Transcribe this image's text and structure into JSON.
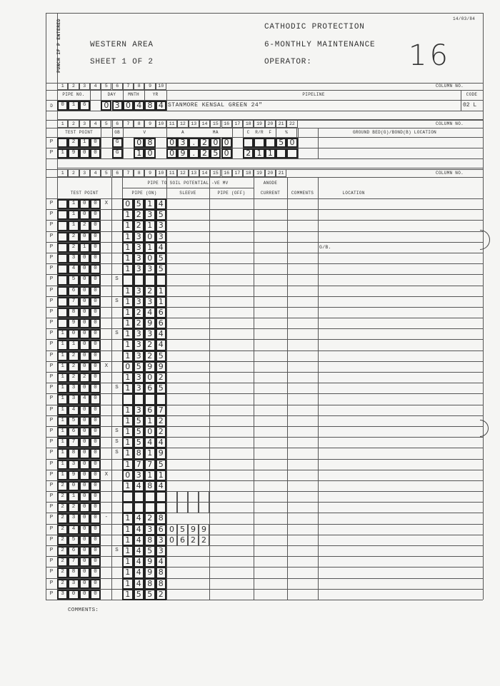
{
  "header": {
    "punch_label": "PUNCH IF P ENTERED",
    "org": "WESTERN AREA",
    "sheet": "SHEET 1 OF 2",
    "title": "CATHODIC PROTECTION",
    "subtitle": "6-MONTHLY MAINTENANCE",
    "operator_label": "OPERATOR:",
    "form_number": "16",
    "date": "14/03/84",
    "column_no_label": "COLUMN NO."
  },
  "section1": {
    "column_numbers": [
      "1",
      "2",
      "3",
      "4",
      "5",
      "6",
      "7",
      "8",
      "9",
      "10"
    ],
    "headers": {
      "pipe_no": "PIPE NO.",
      "day": "DAY",
      "month": "MNTH",
      "year": "YR",
      "pipeline": "PIPELINE",
      "code": "CODE"
    },
    "row": {
      "marker": "D",
      "pipe_no": [
        "0",
        "1",
        "6"
      ],
      "date_digits": [
        "0",
        "3",
        "0",
        "4",
        "8",
        "4"
      ],
      "pipeline": "STANMORE KENSAL GREEN 24\"",
      "code": "02 L"
    }
  },
  "section2": {
    "column_numbers": [
      "1",
      "2",
      "3",
      "4",
      "5",
      "6",
      "7",
      "8",
      "9",
      "10",
      "11",
      "12",
      "13",
      "14",
      "15",
      "16",
      "17",
      "18",
      "19",
      "20",
      "21",
      "22"
    ],
    "headers": {
      "test_point": "TEST POINT",
      "gb": "GB",
      "v": "V",
      "a": "A",
      "ma": "MA",
      "c": "C",
      "rr": "R/R",
      "f": "F",
      "pct": "%",
      "location": "GROUND BED(G)/BOND(B) LOCATION"
    },
    "rows": [
      {
        "marker": "P",
        "test_point": [
          "",
          "2",
          "1",
          "0",
          ""
        ],
        "gb": "G",
        "v": [
          "0",
          "8"
        ],
        "a": [
          "0",
          "3",
          ".",
          "2",
          "0",
          "0"
        ],
        "c": [
          "",
          "",
          ""
        ],
        "pct": [
          "5",
          "0"
        ]
      },
      {
        "marker": "P",
        "test_point": [
          "1",
          "9",
          "0",
          "0",
          ""
        ],
        "gb": "G",
        "v": [
          "1",
          "0"
        ],
        "a": [
          "0",
          "9",
          ".",
          "2",
          "5",
          "0"
        ],
        "c": [
          "2",
          "1",
          "1"
        ],
        "pct": [
          "",
          ""
        ]
      }
    ]
  },
  "main": {
    "column_numbers": [
      "1",
      "2",
      "3",
      "4",
      "5",
      "6",
      "7",
      "8",
      "9",
      "10",
      "11",
      "12",
      "13",
      "14",
      "15",
      "16",
      "17",
      "18",
      "19",
      "20",
      "21"
    ],
    "headers": {
      "test_point": "TEST POINT",
      "pipe_to_soil": "PIPE TO SOIL POTENTIAL -VE MV",
      "pipe_on": "PIPE (ON)",
      "sleeve": "SLEEVE",
      "pipe_off": "PIPE (OFF)",
      "anode": "ANODE",
      "current": "CURRENT",
      "comments": "COMMENTS",
      "location": "LOCATION"
    },
    "rows": [
      {
        "marker": "P",
        "test_point": [
          "",
          "1",
          "0",
          "0",
          "X"
        ],
        "s": "",
        "pipe_on": [
          "0",
          "5",
          "1",
          "4"
        ]
      },
      {
        "marker": "P",
        "test_point": [
          "",
          "1",
          "0",
          "0",
          ""
        ],
        "s": "",
        "pipe_on": [
          "1",
          "2",
          "3",
          "5"
        ]
      },
      {
        "marker": "P",
        "test_point": [
          "",
          "1",
          "2",
          "0",
          ""
        ],
        "s": "",
        "pipe_on": [
          "1",
          "2",
          "1",
          "3"
        ]
      },
      {
        "marker": "P",
        "test_point": [
          "",
          "2",
          "0",
          "0",
          ""
        ],
        "s": "",
        "pipe_on": [
          "1",
          "3",
          "0",
          "3"
        ]
      },
      {
        "marker": "P",
        "test_point": [
          "",
          "2",
          "1",
          "0",
          ""
        ],
        "s": "",
        "pipe_on": [
          "1",
          "3",
          "1",
          "4"
        ],
        "location": "G/B."
      },
      {
        "marker": "P",
        "test_point": [
          "",
          "3",
          "0",
          "0",
          ""
        ],
        "s": "",
        "pipe_on": [
          "1",
          "3",
          "0",
          "5"
        ]
      },
      {
        "marker": "P",
        "test_point": [
          "",
          "4",
          "0",
          "0",
          ""
        ],
        "s": "",
        "pipe_on": [
          "1",
          "3",
          "3",
          "5"
        ]
      },
      {
        "marker": "P",
        "test_point": [
          "",
          "5",
          "0",
          "0",
          ""
        ],
        "s": "S",
        "pipe_on": [
          "",
          "",
          "",
          ""
        ]
      },
      {
        "marker": "P",
        "test_point": [
          "",
          "6",
          "0",
          "0",
          ""
        ],
        "s": "",
        "pipe_on": [
          "1",
          "3",
          "2",
          "1"
        ]
      },
      {
        "marker": "P",
        "test_point": [
          "",
          "7",
          "0",
          "0",
          ""
        ],
        "s": "S",
        "pipe_on": [
          "1",
          "3",
          "3",
          "1"
        ]
      },
      {
        "marker": "P",
        "test_point": [
          "",
          "8",
          "0",
          "0",
          ""
        ],
        "s": "",
        "pipe_on": [
          "1",
          "2",
          "4",
          "6"
        ]
      },
      {
        "marker": "P",
        "test_point": [
          "",
          "9",
          "0",
          "0",
          ""
        ],
        "s": "",
        "pipe_on": [
          "1",
          "2",
          "9",
          "6"
        ]
      },
      {
        "marker": "P",
        "test_point": [
          "1",
          "0",
          "0",
          "0",
          ""
        ],
        "s": "S",
        "pipe_on": [
          "1",
          "3",
          "3",
          "4"
        ]
      },
      {
        "marker": "P",
        "test_point": [
          "1",
          "1",
          "0",
          "0",
          ""
        ],
        "s": "",
        "pipe_on": [
          "1",
          "3",
          "2",
          "4"
        ]
      },
      {
        "marker": "P",
        "test_point": [
          "1",
          "2",
          "0",
          "0",
          ""
        ],
        "s": "",
        "pipe_on": [
          "1",
          "3",
          "2",
          "5"
        ]
      },
      {
        "marker": "P",
        "test_point": [
          "1",
          "2",
          "0",
          "0",
          "X"
        ],
        "s": "",
        "pipe_on": [
          "0",
          "5",
          "9",
          "9"
        ]
      },
      {
        "marker": "P",
        "test_point": [
          "1",
          "2",
          "2",
          "0",
          ""
        ],
        "s": "",
        "pipe_on": [
          "1",
          "3",
          "0",
          "2"
        ]
      },
      {
        "marker": "P",
        "test_point": [
          "1",
          "3",
          "0",
          "0",
          ""
        ],
        "s": "S",
        "pipe_on": [
          "1",
          "3",
          "6",
          "5"
        ]
      },
      {
        "marker": "P",
        "test_point": [
          "1",
          "3",
          "4",
          "0",
          ""
        ],
        "s": "",
        "pipe_on": [
          "",
          "",
          "",
          ""
        ]
      },
      {
        "marker": "P",
        "test_point": [
          "1",
          "4",
          "0",
          "0",
          ""
        ],
        "s": "",
        "pipe_on": [
          "1",
          "3",
          "6",
          "7"
        ]
      },
      {
        "marker": "P",
        "test_point": [
          "1",
          "5",
          "0",
          "0",
          ""
        ],
        "s": "",
        "pipe_on": [
          "1",
          "5",
          "1",
          "2"
        ]
      },
      {
        "marker": "P",
        "test_point": [
          "1",
          "6",
          "0",
          "0",
          ""
        ],
        "s": "S",
        "pipe_on": [
          "1",
          "5",
          "0",
          "2"
        ]
      },
      {
        "marker": "P",
        "test_point": [
          "1",
          "7",
          "0",
          "0",
          ""
        ],
        "s": "S",
        "pipe_on": [
          "1",
          "5",
          "4",
          "4"
        ]
      },
      {
        "marker": "P",
        "test_point": [
          "1",
          "8",
          "0",
          "0",
          ""
        ],
        "s": "S",
        "pipe_on": [
          "1",
          "8",
          "1",
          "9"
        ]
      },
      {
        "marker": "P",
        "test_point": [
          "1",
          "3",
          "0",
          "0",
          ""
        ],
        "s": "",
        "pipe_on": [
          "1",
          "7",
          "7",
          "5"
        ]
      },
      {
        "marker": "P",
        "test_point": [
          "1",
          "9",
          "0",
          "0",
          "X"
        ],
        "s": "",
        "pipe_on": [
          "0",
          "3",
          "1",
          "1"
        ]
      },
      {
        "marker": "P",
        "test_point": [
          "2",
          "0",
          "0",
          "0",
          ""
        ],
        "s": "",
        "pipe_on": [
          "1",
          "4",
          "8",
          "4"
        ]
      },
      {
        "marker": "P",
        "test_point": [
          "2",
          "1",
          "0",
          "0",
          ""
        ],
        "s": "",
        "pipe_on": [
          "",
          "",
          "",
          ""
        ],
        "sleeve": [
          "",
          "",
          "",
          ""
        ]
      },
      {
        "marker": "P",
        "test_point": [
          "2",
          "2",
          "0",
          "0",
          ""
        ],
        "s": "",
        "pipe_on": [
          "",
          "",
          "",
          ""
        ],
        "sleeve": [
          "",
          "",
          "",
          ""
        ]
      },
      {
        "marker": "P",
        "test_point": [
          "2",
          "3",
          "0",
          "0",
          "-"
        ],
        "s": "",
        "pipe_on": [
          "1",
          "4",
          "2",
          "8"
        ]
      },
      {
        "marker": "P",
        "test_point": [
          "2",
          "4",
          "0",
          "0",
          ""
        ],
        "s": "",
        "pipe_on": [
          "1",
          "4",
          "3",
          "6"
        ],
        "sleeve": [
          "0",
          "5",
          "9",
          "9"
        ]
      },
      {
        "marker": "P",
        "test_point": [
          "2",
          "5",
          "0",
          "0",
          ""
        ],
        "s": "",
        "pipe_on": [
          "1",
          "4",
          "8",
          "3"
        ],
        "sleeve": [
          "0",
          "6",
          "2",
          "2"
        ]
      },
      {
        "marker": "P",
        "test_point": [
          "2",
          "6",
          "0",
          "0",
          ""
        ],
        "s": "S",
        "pipe_on": [
          "1",
          "4",
          "5",
          "3"
        ]
      },
      {
        "marker": "P",
        "test_point": [
          "2",
          "7",
          "0",
          "0",
          ""
        ],
        "s": "",
        "pipe_on": [
          "1",
          "4",
          "9",
          "4"
        ]
      },
      {
        "marker": "P",
        "test_point": [
          "2",
          "8",
          "0",
          "0",
          ""
        ],
        "s": "",
        "pipe_on": [
          "1",
          "4",
          "9",
          "8"
        ]
      },
      {
        "marker": "P",
        "test_point": [
          "2",
          "3",
          "0",
          "0",
          ""
        ],
        "s": "",
        "pipe_on": [
          "1",
          "4",
          "8",
          "8"
        ]
      },
      {
        "marker": "P",
        "test_point": [
          "3",
          "0",
          "0",
          "0",
          ""
        ],
        "s": "",
        "pipe_on": [
          "1",
          "5",
          "5",
          "2"
        ]
      }
    ]
  },
  "footer": {
    "comments_label": "COMMENTS:"
  }
}
